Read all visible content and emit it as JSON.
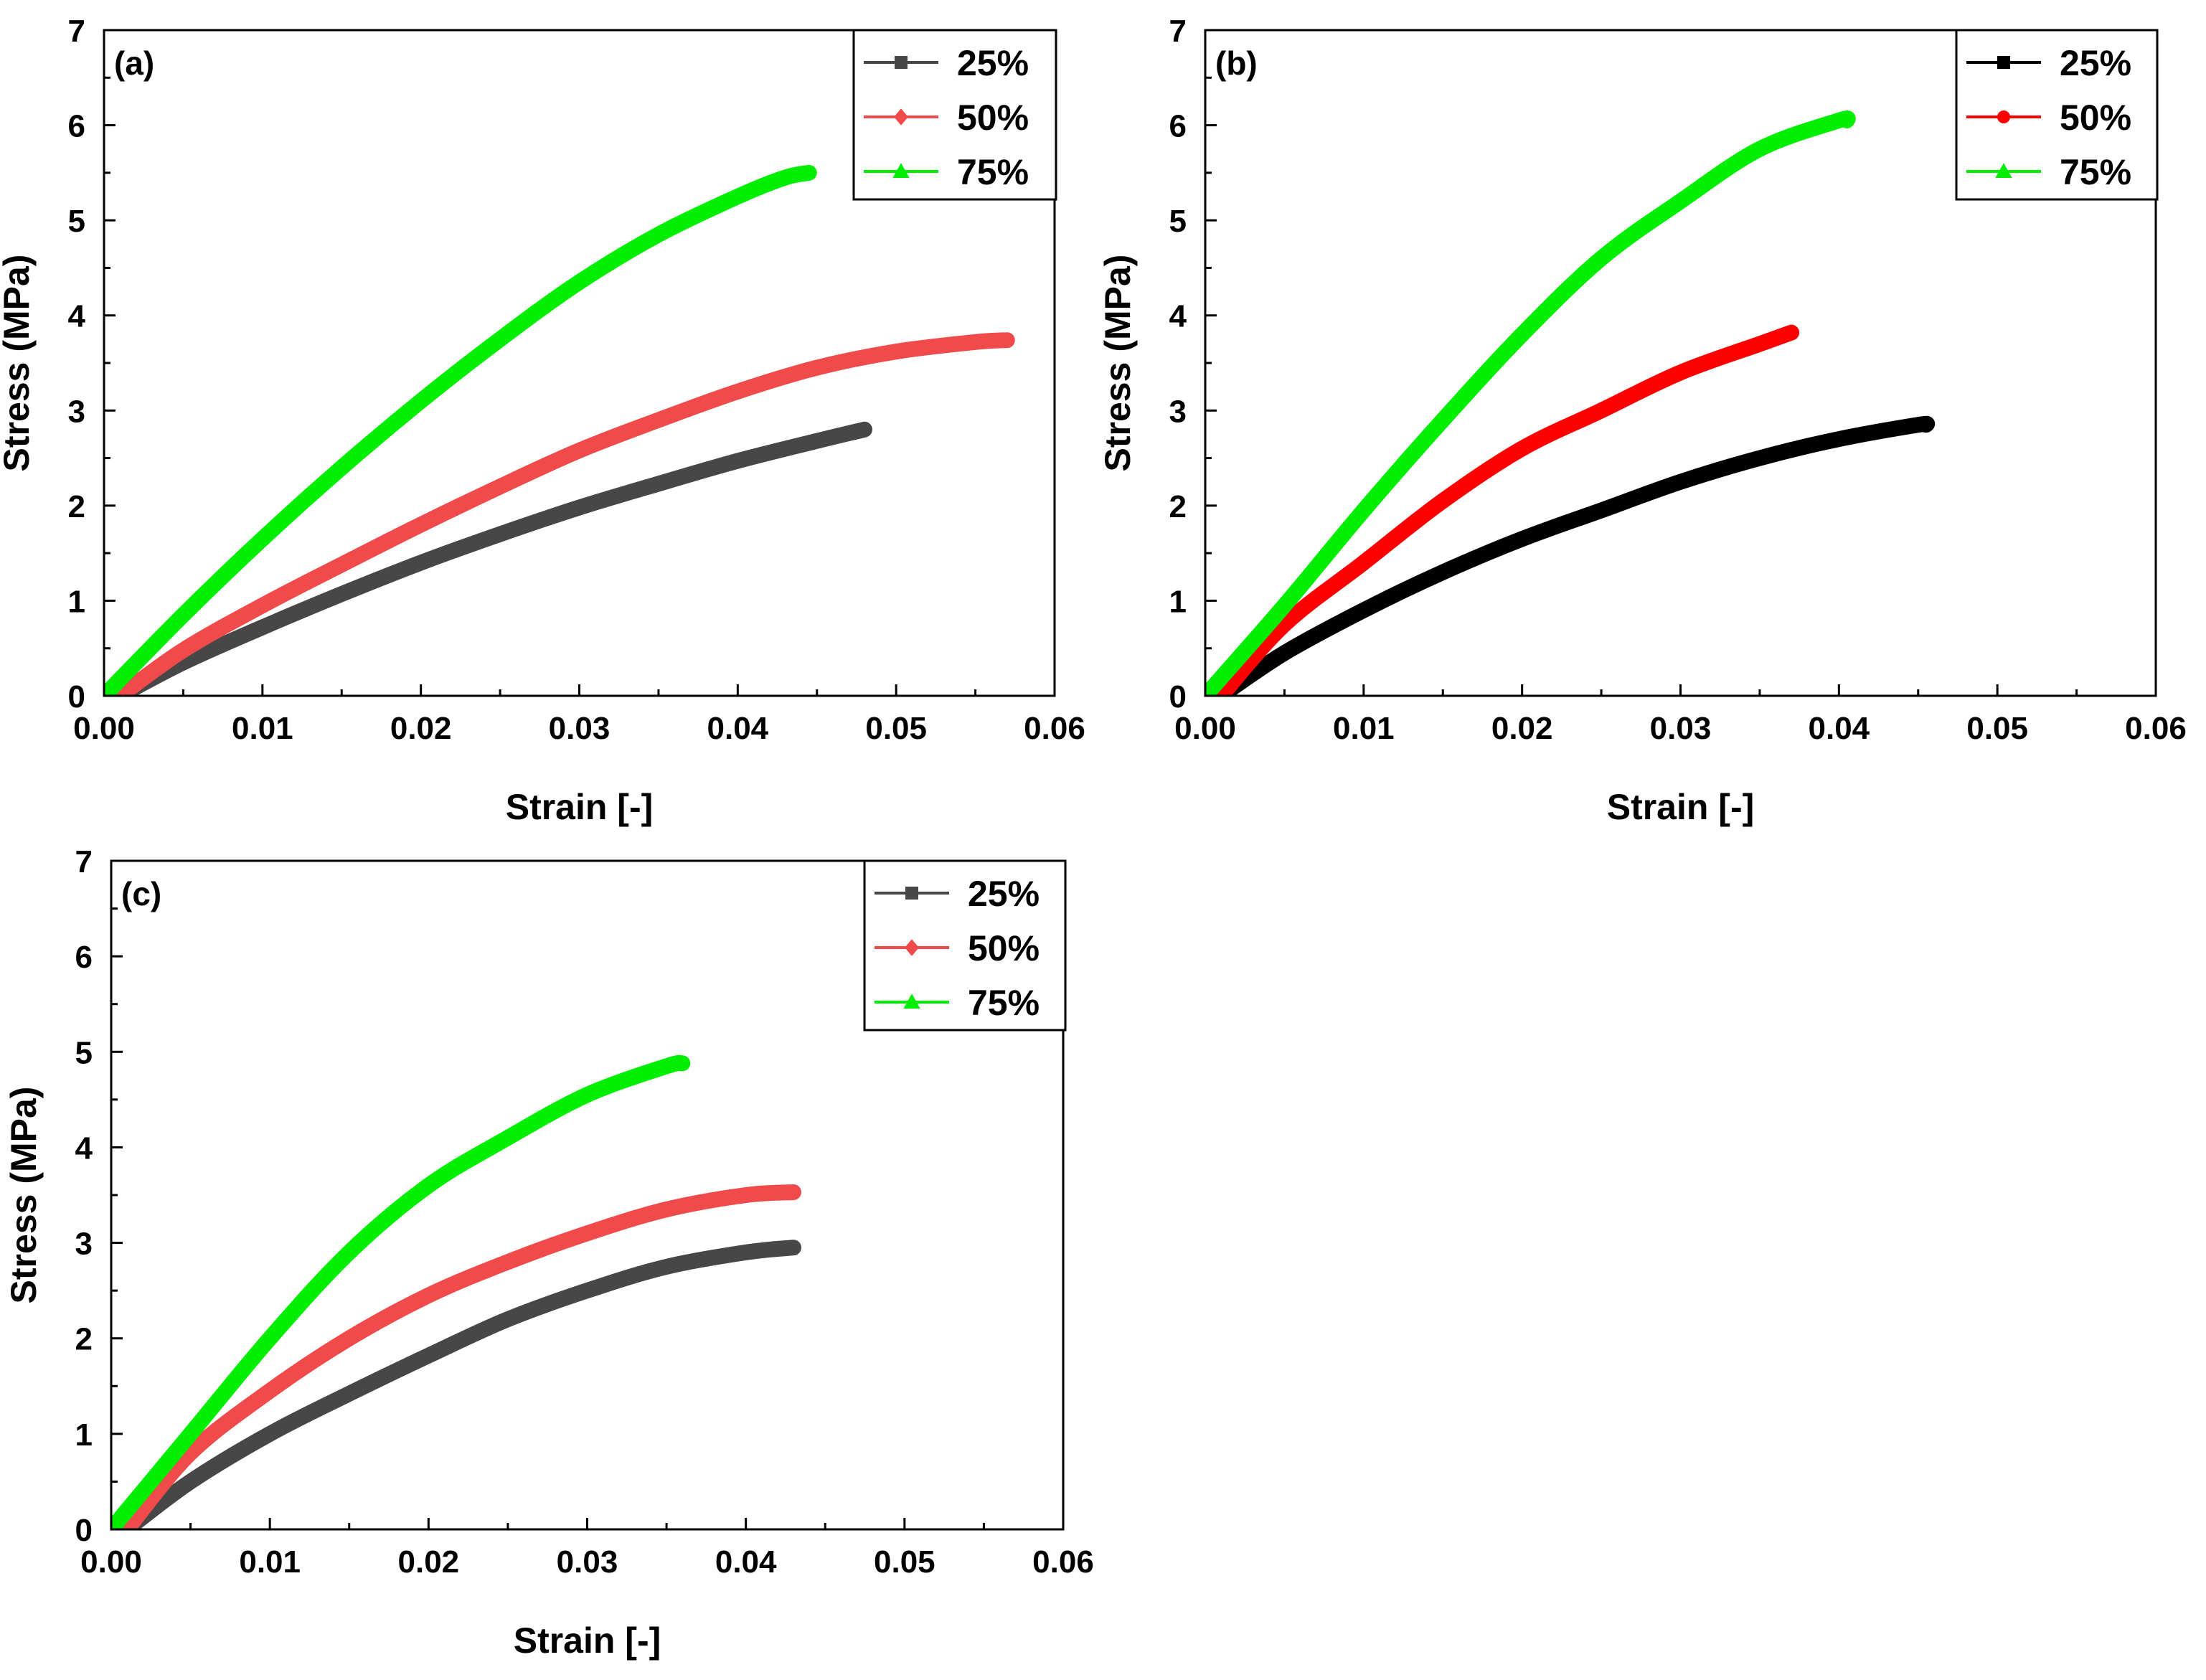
{
  "chart_data": [
    {
      "type": "line",
      "panel_label": "(a)",
      "xlabel": "Strain [-]",
      "ylabel": "Stress (MPa)",
      "xlim": [
        0,
        0.06
      ],
      "ylim": [
        0,
        7
      ],
      "xticks": [
        0,
        0.01,
        0.02,
        0.03,
        0.04,
        0.05,
        0.06
      ],
      "xtick_labels": [
        "0.00",
        "0.01",
        "0.02",
        "0.03",
        "0.04",
        "0.05",
        "0.06"
      ],
      "yticks": [
        0,
        1,
        2,
        3,
        4,
        5,
        6,
        7
      ],
      "ytick_labels": [
        "0",
        "1",
        "2",
        "3",
        "4",
        "5",
        "6",
        "7"
      ],
      "legend_position": "top-right",
      "series": [
        {
          "name": "25%",
          "color": "#474747",
          "marker": "square",
          "x": [
            0.001,
            0.005,
            0.01,
            0.015,
            0.02,
            0.025,
            0.03,
            0.035,
            0.04,
            0.045,
            0.048
          ],
          "y": [
            0,
            0.35,
            0.72,
            1.07,
            1.4,
            1.7,
            1.98,
            2.23,
            2.47,
            2.68,
            2.8
          ]
        },
        {
          "name": "50%",
          "color": "#f04a4a",
          "marker": "diamond",
          "x": [
            0.001,
            0.005,
            0.01,
            0.015,
            0.02,
            0.025,
            0.03,
            0.035,
            0.04,
            0.045,
            0.05,
            0.055,
            0.057
          ],
          "y": [
            0,
            0.48,
            0.95,
            1.38,
            1.8,
            2.2,
            2.58,
            2.9,
            3.2,
            3.45,
            3.62,
            3.72,
            3.74
          ]
        },
        {
          "name": "75%",
          "color": "#00ee00",
          "marker": "triangle",
          "x": [
            0,
            0.005,
            0.01,
            0.015,
            0.02,
            0.025,
            0.03,
            0.035,
            0.04,
            0.043,
            0.0445
          ],
          "y": [
            0,
            0.85,
            1.65,
            2.4,
            3.1,
            3.75,
            4.35,
            4.85,
            5.25,
            5.45,
            5.5
          ]
        }
      ]
    },
    {
      "type": "line",
      "panel_label": "(b)",
      "xlabel": "Strain [-]",
      "ylabel": "Stress (MPa)",
      "xlim": [
        0,
        0.06
      ],
      "ylim": [
        0,
        7
      ],
      "xticks": [
        0,
        0.01,
        0.02,
        0.03,
        0.04,
        0.05,
        0.06
      ],
      "xtick_labels": [
        "0.00",
        "0.01",
        "0.02",
        "0.03",
        "0.04",
        "0.05",
        "0.06"
      ],
      "yticks": [
        0,
        1,
        2,
        3,
        4,
        5,
        6,
        7
      ],
      "ytick_labels": [
        "0",
        "1",
        "2",
        "3",
        "4",
        "5",
        "6",
        "7"
      ],
      "legend_position": "top-right",
      "series": [
        {
          "name": "25%",
          "color": "#000000",
          "marker": "square",
          "x": [
            0.001,
            0.005,
            0.01,
            0.015,
            0.02,
            0.025,
            0.03,
            0.035,
            0.04,
            0.045,
            0.0455
          ],
          "y": [
            0,
            0.45,
            0.9,
            1.3,
            1.65,
            1.95,
            2.25,
            2.5,
            2.7,
            2.85,
            2.85
          ]
        },
        {
          "name": "50%",
          "color": "#ff0000",
          "marker": "circle",
          "x": [
            0.001,
            0.005,
            0.01,
            0.015,
            0.02,
            0.025,
            0.03,
            0.035,
            0.037
          ],
          "y": [
            0,
            0.75,
            1.4,
            2.05,
            2.6,
            3.0,
            3.4,
            3.7,
            3.82
          ]
        },
        {
          "name": "75%",
          "color": "#00ee00",
          "marker": "triangle",
          "x": [
            0,
            0.005,
            0.01,
            0.015,
            0.02,
            0.025,
            0.03,
            0.035,
            0.04,
            0.0405
          ],
          "y": [
            0,
            0.95,
            1.95,
            2.9,
            3.8,
            4.6,
            5.2,
            5.75,
            6.05,
            6.05
          ]
        }
      ]
    },
    {
      "type": "line",
      "panel_label": "(c)",
      "xlabel": "Strain [-]",
      "ylabel": "Stress (MPa)",
      "xlim": [
        0,
        0.06
      ],
      "ylim": [
        0,
        7
      ],
      "xticks": [
        0,
        0.01,
        0.02,
        0.03,
        0.04,
        0.05,
        0.06
      ],
      "xtick_labels": [
        "0.00",
        "0.01",
        "0.02",
        "0.03",
        "0.04",
        "0.05",
        "0.06"
      ],
      "yticks": [
        0,
        1,
        2,
        3,
        4,
        5,
        6,
        7
      ],
      "ytick_labels": [
        "0",
        "1",
        "2",
        "3",
        "4",
        "5",
        "6",
        "7"
      ],
      "legend_position": "top-right",
      "series": [
        {
          "name": "25%",
          "color": "#474747",
          "marker": "square",
          "x": [
            0.001,
            0.005,
            0.01,
            0.015,
            0.02,
            0.025,
            0.03,
            0.035,
            0.04,
            0.043
          ],
          "y": [
            0,
            0.5,
            1.0,
            1.42,
            1.82,
            2.2,
            2.5,
            2.75,
            2.9,
            2.95
          ]
        },
        {
          "name": "50%",
          "color": "#f04a4a",
          "marker": "diamond",
          "x": [
            0.001,
            0.005,
            0.01,
            0.015,
            0.02,
            0.025,
            0.03,
            0.035,
            0.04,
            0.043
          ],
          "y": [
            0,
            0.8,
            1.45,
            2.0,
            2.45,
            2.8,
            3.1,
            3.35,
            3.5,
            3.53
          ]
        },
        {
          "name": "75%",
          "color": "#00ee00",
          "marker": "triangle",
          "x": [
            0,
            0.005,
            0.01,
            0.015,
            0.02,
            0.025,
            0.03,
            0.035,
            0.036
          ],
          "y": [
            0,
            1.0,
            2.0,
            2.9,
            3.6,
            4.1,
            4.55,
            4.85,
            4.88
          ]
        }
      ]
    }
  ]
}
